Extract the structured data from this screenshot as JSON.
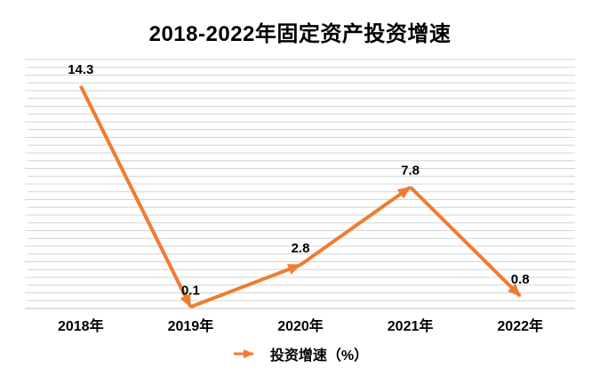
{
  "chart_data": {
    "type": "line",
    "title": "2018-2022年固定资产投资增速",
    "categories": [
      "2018年",
      "2019年",
      "2020年",
      "2021年",
      "2022年"
    ],
    "series": [
      {
        "name": "投资增速（%）",
        "values": [
          14.3,
          0.1,
          2.8,
          7.8,
          0.8
        ],
        "data_labels": [
          "14.3",
          "0.1",
          "2.8",
          "7.8",
          "0.8"
        ]
      }
    ],
    "xlabel": "",
    "ylabel": "",
    "ylim": [
      0,
      16
    ],
    "grid": true,
    "grid_interval": 0.5,
    "y_tick_labels_visible": false,
    "legend_position": "bottom",
    "line_style": "arrow-segments",
    "colors": {
      "line": "#ED7D31",
      "gridline": "#D4D4D4",
      "axis_line": "#BFBFBF",
      "text": "#000000"
    }
  }
}
